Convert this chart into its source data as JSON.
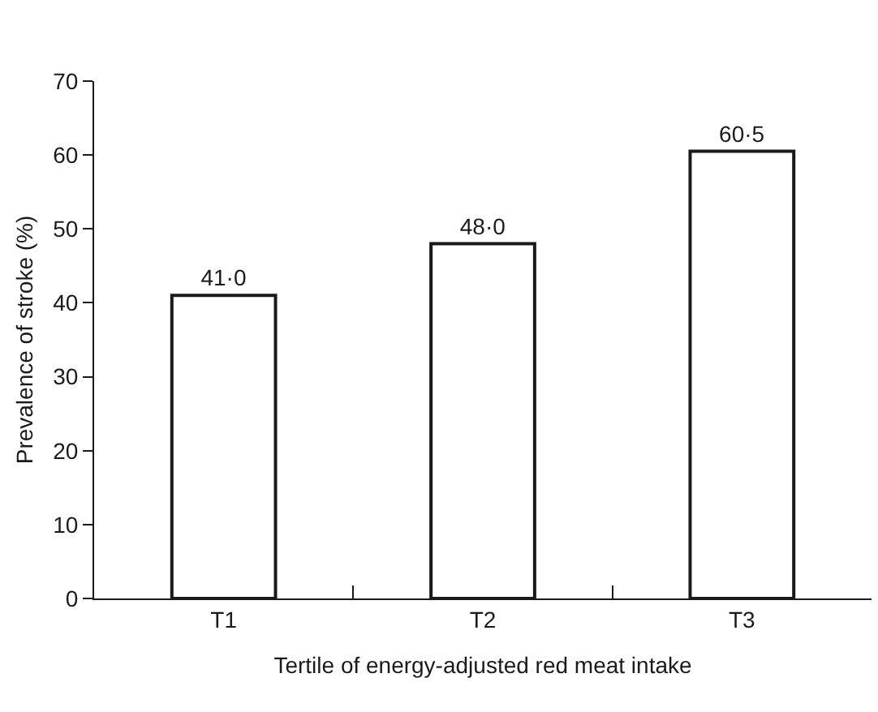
{
  "chart_data": {
    "type": "bar",
    "xlabel": "Tertile of energy-adjusted red meat intake",
    "ylabel": "Prevalence of stroke (%)",
    "categories": [
      "T1",
      "T2",
      "T3"
    ],
    "series": [
      {
        "color": "#ffffff",
        "values": [
          41.0,
          48.0,
          60.5
        ],
        "value_labels": [
          "41·0",
          "48·0",
          "60·5"
        ]
      }
    ],
    "ylim": [
      0,
      70
    ],
    "yticks": [
      0,
      10,
      20,
      30,
      40,
      50,
      60,
      70
    ],
    "grid": false
  }
}
